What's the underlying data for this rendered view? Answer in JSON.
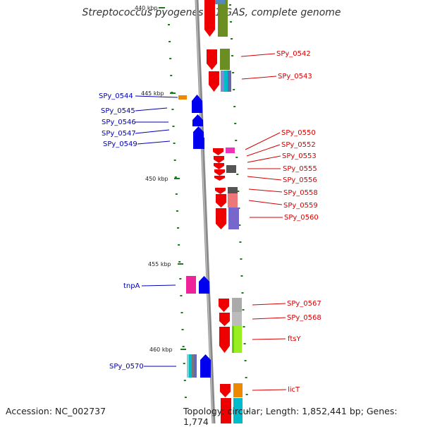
{
  "header": {
    "title": "Streptococcus pyogenes M1 GAS, complete genome"
  },
  "footer": {
    "accession": "Accession: NC_002737",
    "topology": "Topology: circular; Length: 1,852,441 bp; Genes: 1,774"
  },
  "scale": {
    "ticks": [
      {
        "label": "440 kbp"
      },
      {
        "label": "445 kbp"
      },
      {
        "label": "450 kbp"
      },
      {
        "label": "455 kbp"
      },
      {
        "label": "460 kbp"
      }
    ]
  },
  "genes": {
    "right": [
      {
        "label": "SPy_0542"
      },
      {
        "label": "SPy_0543"
      },
      {
        "label": "SPy_0550"
      },
      {
        "label": "SPy_0552"
      },
      {
        "label": "SPy_0553"
      },
      {
        "label": "SPy_0555"
      },
      {
        "label": "SPy_0556"
      },
      {
        "label": "SPy_0558"
      },
      {
        "label": "SPy_0559"
      },
      {
        "label": "SPy_0560"
      },
      {
        "label": "SPy_0567"
      },
      {
        "label": "SPy_0568"
      },
      {
        "label": "ftsY"
      },
      {
        "label": "licT"
      }
    ],
    "left": [
      {
        "label": "SPy_0544"
      },
      {
        "label": "SPy_0545"
      },
      {
        "label": "SPy_0546"
      },
      {
        "label": "SPy_0547"
      },
      {
        "label": "SPy_0549"
      },
      {
        "label": "tnpA"
      },
      {
        "label": "SPy_0570"
      }
    ]
  },
  "colors": {
    "forward_strand": "#ee0000",
    "reverse_strand": "#0000ee",
    "backbone": "#808080",
    "tick_marks": "#1a7a1a",
    "label_red": "#d40000",
    "label_blue": "#0000b4"
  }
}
